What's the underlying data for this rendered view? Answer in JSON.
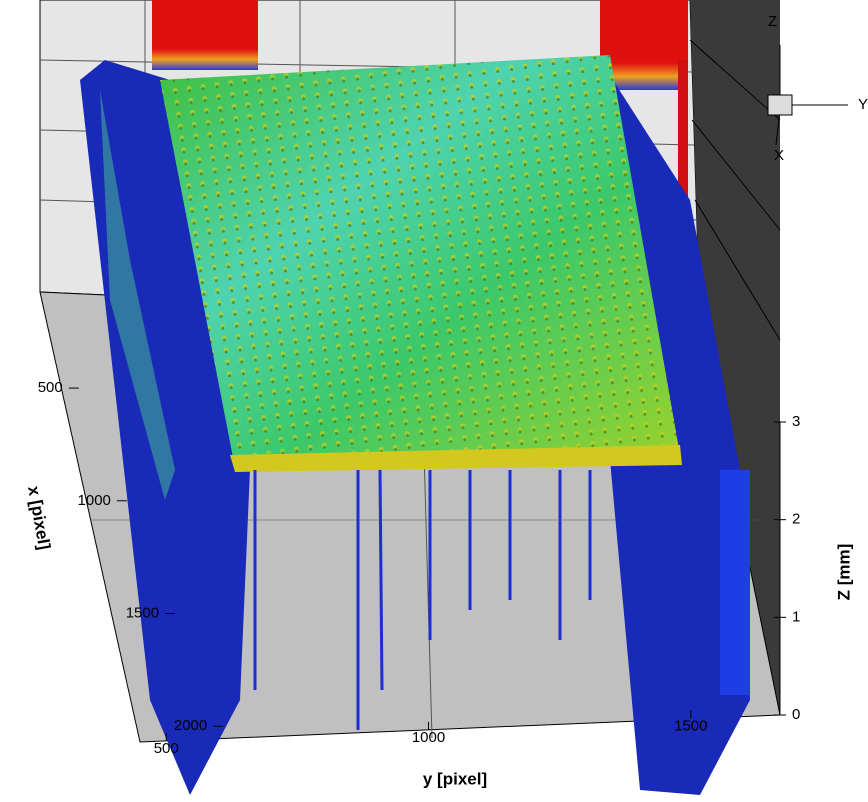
{
  "chart_data": {
    "type": "surface",
    "x_label": "x [pixel]",
    "y_label": "y [pixel]",
    "z_label": "Z [mm]",
    "xlim": [
      340,
      2070
    ],
    "xticks": [
      500,
      1000,
      1500,
      2000
    ],
    "ylim": [
      450,
      1670
    ],
    "yticks": [
      500,
      1000,
      1500
    ],
    "zlim": [
      0,
      3
    ],
    "zticks": [
      0,
      1,
      2,
      3
    ],
    "triad": {
      "z": "Z",
      "y": "Y",
      "x": "X"
    }
  }
}
